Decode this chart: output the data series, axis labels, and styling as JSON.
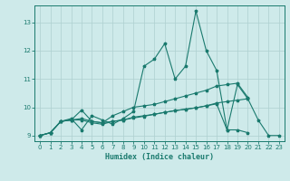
{
  "xlabel": "Humidex (Indice chaleur)",
  "background_color": "#ceeaea",
  "grid_color": "#aed0d0",
  "line_color": "#1a7a6e",
  "xlim": [
    -0.5,
    23.5
  ],
  "ylim": [
    8.8,
    13.6
  ],
  "xticks": [
    0,
    1,
    2,
    3,
    4,
    5,
    6,
    7,
    8,
    9,
    10,
    11,
    12,
    13,
    14,
    15,
    16,
    17,
    18,
    19,
    20,
    21,
    22,
    23
  ],
  "yticks": [
    9,
    10,
    11,
    12,
    13
  ],
  "x": [
    0,
    1,
    2,
    3,
    4,
    5,
    6,
    7,
    8,
    9,
    10,
    11,
    12,
    13,
    14,
    15,
    16,
    17,
    18,
    19,
    20,
    21,
    22,
    23
  ],
  "line1": [
    9.0,
    9.1,
    9.5,
    9.6,
    9.2,
    9.7,
    9.55,
    9.4,
    9.6,
    9.85,
    11.45,
    11.7,
    12.25,
    11.0,
    11.45,
    13.4,
    12.0,
    11.3,
    9.2,
    10.8,
    10.3,
    9.55,
    9.0,
    9.0
  ],
  "line2": [
    9.0,
    9.1,
    9.5,
    9.55,
    9.9,
    9.5,
    9.45,
    9.7,
    9.85,
    10.0,
    10.05,
    10.1,
    10.2,
    10.3,
    10.4,
    10.5,
    10.6,
    10.75,
    10.8,
    10.85,
    10.35,
    null,
    null,
    null
  ],
  "line3": [
    9.0,
    9.1,
    9.5,
    9.55,
    9.6,
    9.5,
    9.45,
    9.5,
    9.55,
    9.65,
    9.7,
    9.75,
    9.82,
    9.88,
    9.93,
    9.98,
    10.05,
    10.12,
    9.2,
    9.2,
    9.1,
    null,
    null,
    null
  ],
  "line4": [
    9.0,
    9.1,
    9.5,
    9.55,
    9.55,
    9.45,
    9.4,
    9.5,
    9.55,
    9.62,
    9.68,
    9.75,
    9.82,
    9.88,
    9.93,
    9.98,
    10.05,
    10.15,
    10.2,
    10.25,
    10.3,
    null,
    null,
    null
  ]
}
